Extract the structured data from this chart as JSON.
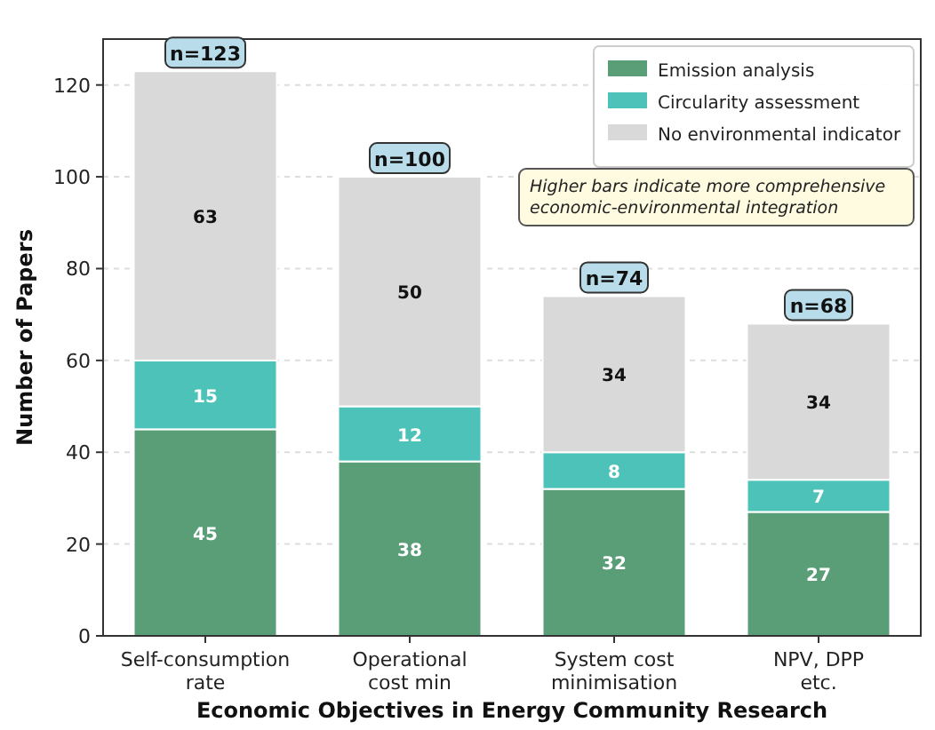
{
  "chart_data": {
    "type": "bar",
    "stacked": true,
    "xlabel": "Economic Objectives in Energy Community Research",
    "ylabel": "Number of Papers",
    "categories": [
      "Self-consumption rate",
      "Operational cost min",
      "System cost minimisation",
      "NPV, DPP etc."
    ],
    "series": [
      {
        "name": "Emission analysis",
        "color": "#5a9e78",
        "values": [
          45,
          38,
          32,
          27
        ]
      },
      {
        "name": "Circularity assessment",
        "color": "#4cc2b8",
        "values": [
          15,
          12,
          8,
          7
        ]
      },
      {
        "name": "No environmental indicator",
        "color": "#d9d9d9",
        "values": [
          63,
          50,
          34,
          34
        ]
      }
    ],
    "totals": [
      "n=123",
      "n=100",
      "n=74",
      "n=68"
    ],
    "data_labels": true,
    "annotations": [
      "Higher bars indicate more comprehensive economic-environmental integration"
    ],
    "ylim": [
      0,
      130
    ],
    "yticks": [
      0,
      20,
      40,
      60,
      80,
      100,
      120
    ],
    "grid": "y",
    "legend": "top right"
  }
}
